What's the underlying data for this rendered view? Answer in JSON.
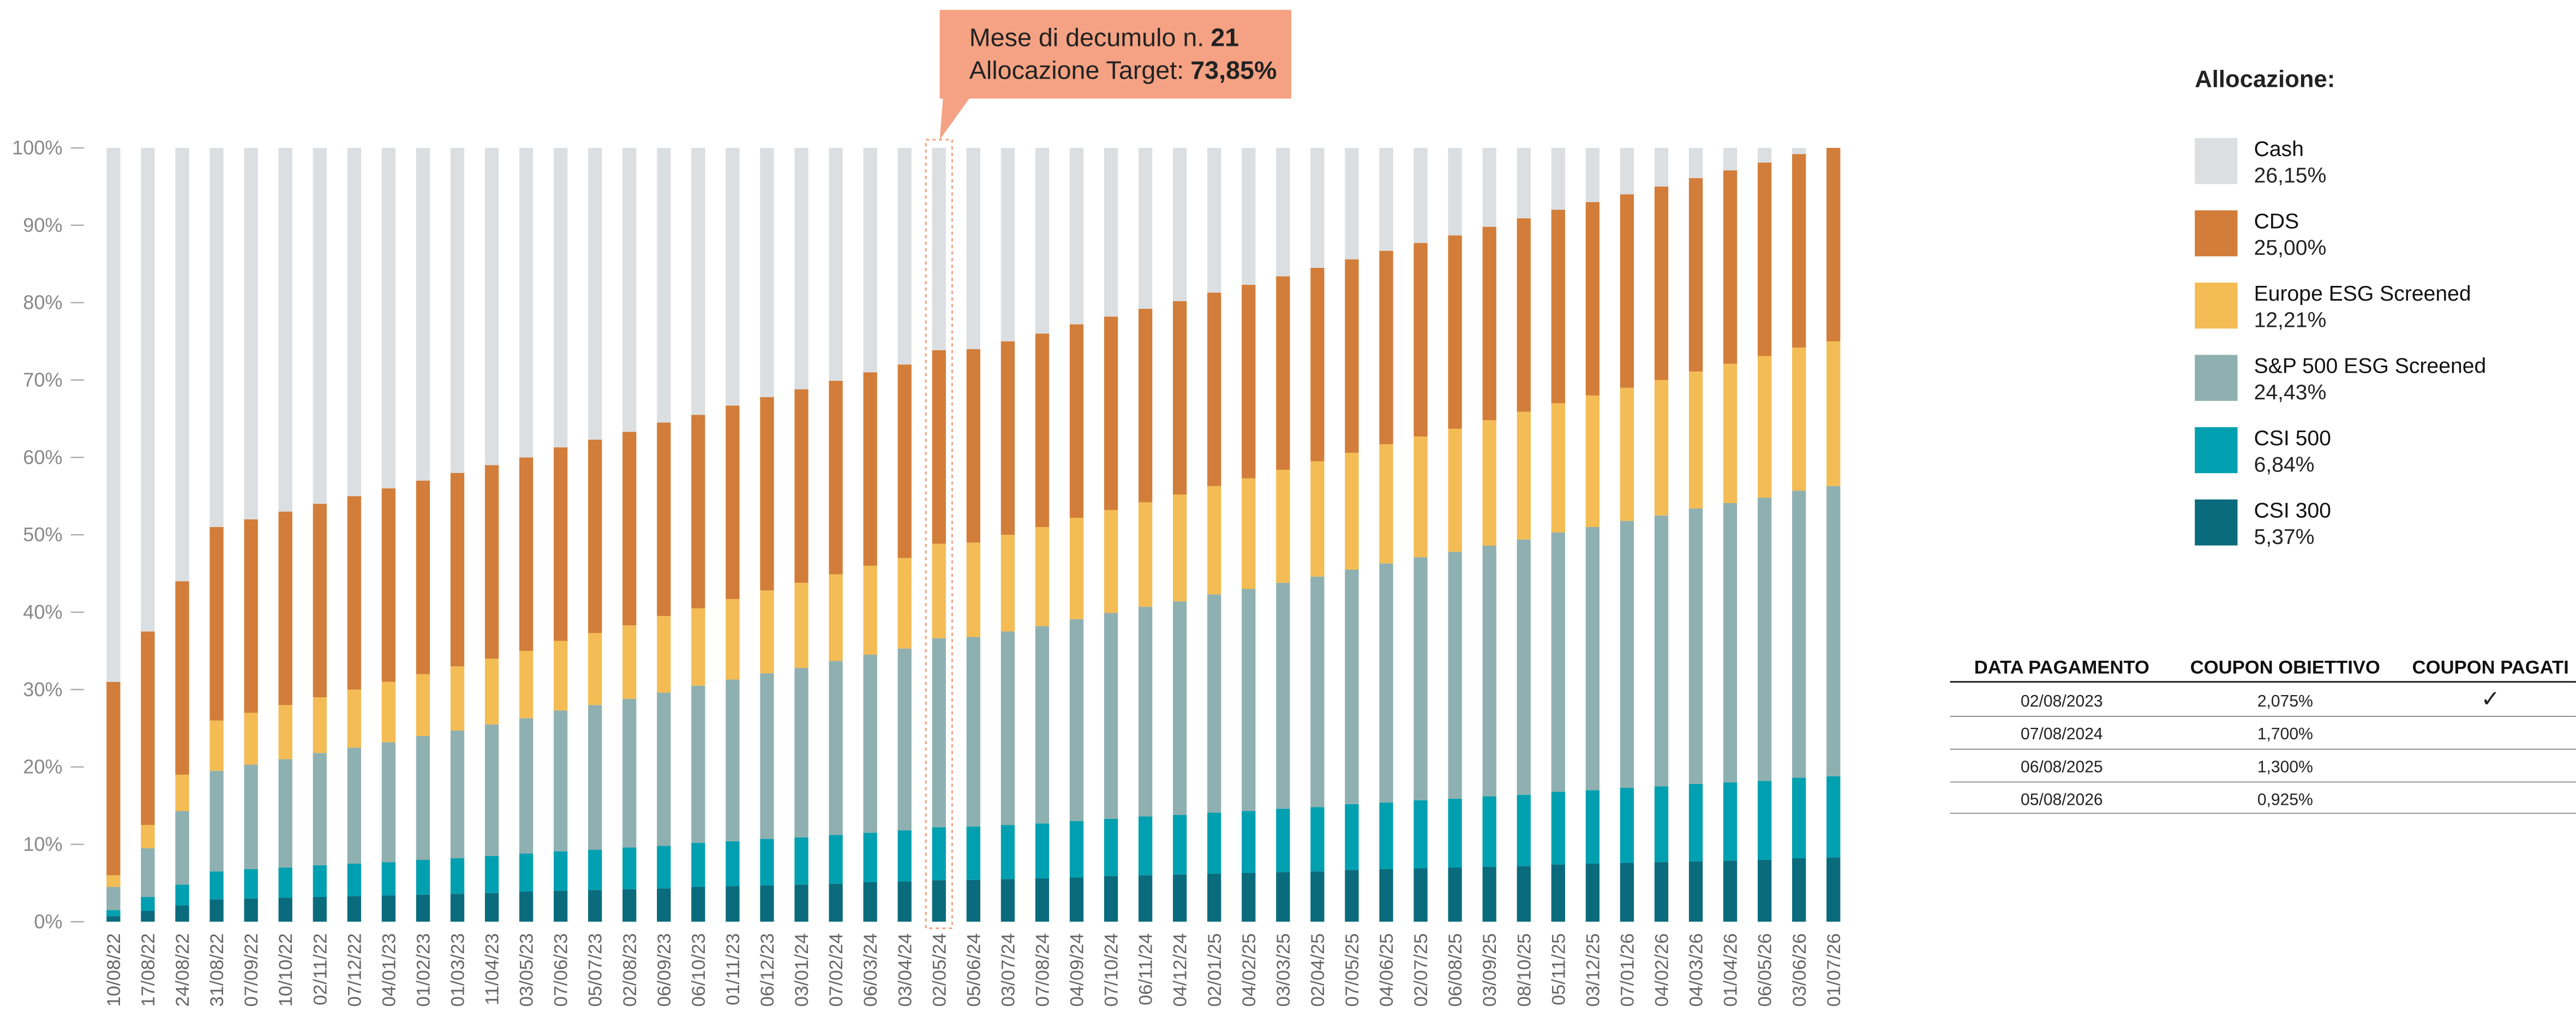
{
  "chart_data": {
    "type": "stacked_bar",
    "categories": [
      "10/08/22",
      "17/08/22",
      "24/08/22",
      "31/08/22",
      "07/09/22",
      "10/10/22",
      "02/11/22",
      "07/12/22",
      "04/01/23",
      "01/02/23",
      "01/03/23",
      "11/04/23",
      "03/05/23",
      "07/06/23",
      "05/07/23",
      "02/08/23",
      "06/09/23",
      "06/10/23",
      "01/11/23",
      "06/12/23",
      "03/01/24",
      "07/02/24",
      "06/03/24",
      "03/04/24",
      "02/05/24",
      "05/06/24",
      "03/07/24",
      "07/08/24",
      "04/09/24",
      "07/10/24",
      "06/11/24",
      "04/12/24",
      "02/01/25",
      "04/02/25",
      "03/03/25",
      "02/04/25",
      "07/05/25",
      "04/06/25",
      "02/07/25",
      "06/08/25",
      "03/09/25",
      "08/10/25",
      "05/11/25",
      "03/12/25",
      "07/01/26",
      "04/02/26",
      "04/03/26",
      "01/04/26",
      "06/05/26",
      "03/06/26",
      "01/07/26"
    ],
    "series": [
      {
        "name": "Cash",
        "color": "#dcdfe2",
        "label_color": "#9aa3a8",
        "legend_label": "26,15%",
        "values": [
          69,
          62.5,
          56,
          49,
          48,
          47,
          46,
          45,
          44,
          43,
          42,
          41,
          40,
          38.7,
          37.7,
          36.7,
          35.5,
          34.5,
          33.3,
          32.2,
          31.2,
          30.1,
          29,
          28,
          26.15,
          26,
          25,
          24,
          22.8,
          21.8,
          20.8,
          19.8,
          18.7,
          17.7,
          16.6,
          15.5,
          14.4,
          13.3,
          12.3,
          11.3,
          10.2,
          9.1,
          8,
          7,
          6,
          5,
          3.9,
          2.9,
          1.9,
          0.8,
          0
        ]
      },
      {
        "name": "CDS",
        "color": "#d27d3a",
        "label_color": "#d27d3a",
        "legend_label": "25,00%",
        "values": [
          25,
          25,
          25,
          25,
          25,
          25,
          25,
          25,
          25,
          25,
          25,
          25,
          25,
          25,
          25,
          25,
          25,
          25,
          25,
          25,
          25,
          25,
          25,
          25,
          25,
          25,
          25,
          25,
          25,
          25,
          25,
          25,
          25,
          25,
          25,
          25,
          25,
          25,
          25,
          25,
          25,
          25,
          25,
          25,
          25,
          25,
          25,
          25,
          25,
          25,
          25
        ]
      },
      {
        "name": "Europe ESG Screened",
        "color": "#f4bc54",
        "label_color": "#f0b040",
        "legend_label": "12,21%",
        "values": [
          1.5,
          3.0,
          4.7,
          6.5,
          6.7,
          7.0,
          7.2,
          7.5,
          7.8,
          8.0,
          8.3,
          8.5,
          8.7,
          9.0,
          9.3,
          9.5,
          9.9,
          10.0,
          10.4,
          10.7,
          11.0,
          11.2,
          11.5,
          11.7,
          12.21,
          12.2,
          12.5,
          12.8,
          13.1,
          13.3,
          13.5,
          13.8,
          14.0,
          14.3,
          14.6,
          14.9,
          15.1,
          15.4,
          15.6,
          15.9,
          16.2,
          16.5,
          16.7,
          17.0,
          17.2,
          17.5,
          17.7,
          18.0,
          18.3,
          18.5,
          18.7
        ]
      },
      {
        "name": "S&P 500 ESG Screened",
        "color": "#8fb0b0",
        "label_color": "#8aabab",
        "legend_label": "24,43%",
        "values": [
          3,
          6.3,
          9.5,
          13,
          13.5,
          14,
          14.5,
          15,
          15.5,
          16,
          16.5,
          17,
          17.5,
          18.2,
          18.7,
          19.2,
          19.8,
          20.3,
          20.9,
          21.4,
          21.9,
          22.5,
          23,
          23.5,
          24.43,
          24.5,
          25,
          25.5,
          26.1,
          26.6,
          27.1,
          27.6,
          28.2,
          28.7,
          29.2,
          29.8,
          30.3,
          30.9,
          31.4,
          31.9,
          32.4,
          33.0,
          33.5,
          34,
          34.5,
          35,
          35.6,
          36.1,
          36.6,
          37.1,
          37.5
        ]
      },
      {
        "name": "CSI 500",
        "color": "#00a0b0",
        "label_color": "#00a0b0",
        "legend_label": "6,84%",
        "values": [
          0.8,
          1.8,
          2.7,
          3.6,
          3.8,
          3.9,
          4.1,
          4.2,
          4.3,
          4.5,
          4.6,
          4.8,
          4.9,
          5.1,
          5.2,
          5.4,
          5.5,
          5.7,
          5.8,
          6.0,
          6.1,
          6.3,
          6.4,
          6.6,
          6.84,
          6.9,
          7.0,
          7.1,
          7.3,
          7.4,
          7.6,
          7.7,
          7.9,
          8.0,
          8.2,
          8.3,
          8.5,
          8.6,
          8.8,
          8.9,
          9.1,
          9.2,
          9.4,
          9.5,
          9.7,
          9.8,
          10.0,
          10.1,
          10.2,
          10.4,
          10.5
        ]
      },
      {
        "name": "CSI 300",
        "color": "#0a6b7c",
        "label_color": "#0a6b7c",
        "legend_label": "5,37%",
        "values": [
          0.7,
          1.4,
          2.1,
          2.9,
          3.0,
          3.1,
          3.2,
          3.3,
          3.4,
          3.5,
          3.6,
          3.7,
          3.9,
          4.0,
          4.1,
          4.2,
          4.3,
          4.5,
          4.6,
          4.7,
          4.8,
          4.9,
          5.1,
          5.2,
          5.37,
          5.4,
          5.5,
          5.6,
          5.7,
          5.9,
          6.0,
          6.1,
          6.2,
          6.3,
          6.4,
          6.5,
          6.7,
          6.8,
          6.9,
          7.0,
          7.1,
          7.2,
          7.4,
          7.5,
          7.6,
          7.7,
          7.8,
          7.9,
          8.0,
          8.2,
          8.3
        ]
      }
    ],
    "ylim": [
      0,
      100
    ],
    "yticks": [
      {
        "value": 0,
        "label": "0%"
      },
      {
        "value": 10,
        "label": "10%"
      },
      {
        "value": 20,
        "label": "20%"
      },
      {
        "value": 30,
        "label": "30%"
      },
      {
        "value": 40,
        "label": "40%"
      },
      {
        "value": 50,
        "label": "50%"
      },
      {
        "value": 60,
        "label": "60%"
      },
      {
        "value": 70,
        "label": "70%"
      },
      {
        "value": 80,
        "label": "80%"
      },
      {
        "value": 90,
        "label": "90%"
      },
      {
        "value": 100,
        "label": "100%"
      }
    ],
    "legend_title": "Allocazione:",
    "annotation": {
      "x": "02/05/24",
      "lines": [
        {
          "text": "Mese di decumulo n.",
          "value": "21"
        },
        {
          "text": "Allocazione Target:",
          "value": "73,85%"
        }
      ]
    }
  },
  "table": {
    "columns": [
      "DATA PAGAMENTO",
      "COUPON OBIETTIVO",
      "COUPON PAGATI"
    ],
    "rows": [
      [
        "02/08/2023",
        "2,075%",
        "✓"
      ],
      [
        "07/08/2024",
        "1,700%"
      ],
      [
        "06/08/2025",
        "1,300%"
      ],
      [
        "05/08/2026",
        "0,925%"
      ]
    ]
  }
}
